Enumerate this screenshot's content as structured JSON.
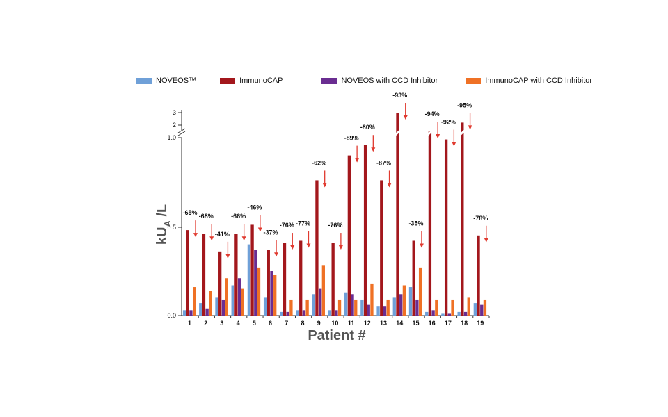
{
  "chart_data": {
    "type": "bar",
    "xlabel": "Patient #",
    "ylabel_main": "kU",
    "ylabel_sub": "A",
    "ylabel_tail": " /L",
    "y_ticks_lower": [
      "0.0",
      "0.5",
      "1.0"
    ],
    "y_ticks_upper": [
      "2",
      "3"
    ],
    "y_scale": "broken axis: 0-1.0 linear, break, 2-3",
    "legend_placement": "top",
    "categories": [
      "1",
      "2",
      "3",
      "4",
      "5",
      "6",
      "7",
      "8",
      "9",
      "10",
      "11",
      "12",
      "13",
      "14",
      "15",
      "16",
      "17",
      "18",
      "19"
    ],
    "series": [
      {
        "name": "NOVEOS™",
        "color": "#6fa0d8",
        "values": [
          0.03,
          0.07,
          0.1,
          0.17,
          0.4,
          0.1,
          0.02,
          0.03,
          0.12,
          0.03,
          0.13,
          0.09,
          0.05,
          0.1,
          0.16,
          0.02,
          0.01,
          0.02,
          0.07
        ]
      },
      {
        "name": "ImmunoCAP",
        "color": "#a3171c",
        "values": [
          0.48,
          0.46,
          0.36,
          0.46,
          0.51,
          0.37,
          0.41,
          0.42,
          0.76,
          0.41,
          0.9,
          0.96,
          0.76,
          3.0,
          0.42,
          1.5,
          0.99,
          2.2,
          0.45
        ]
      },
      {
        "name": "NOVEOS with CCD Inhibitor",
        "color": "#6a2d91",
        "values": [
          0.03,
          0.04,
          0.09,
          0.21,
          0.37,
          0.25,
          0.02,
          0.03,
          0.15,
          0.03,
          0.12,
          0.06,
          0.05,
          0.12,
          0.09,
          0.03,
          0.01,
          0.02,
          0.06
        ]
      },
      {
        "name": "ImmunoCAP with CCD Inhibitor",
        "color": "#ef7125",
        "values": [
          0.16,
          0.14,
          0.21,
          0.15,
          0.27,
          0.23,
          0.09,
          0.09,
          0.28,
          0.09,
          0.09,
          0.18,
          0.09,
          0.17,
          0.27,
          0.09,
          0.09,
          0.1,
          0.09
        ]
      }
    ],
    "annotations": [
      "-65%",
      "-68%",
      "-41%",
      "-66%",
      "-46%",
      "-37%",
      "-76%",
      "-77%",
      "-62%",
      "-76%",
      "-89%",
      "-80%",
      "-87%",
      "-93%",
      "-35%",
      "-94%",
      "-92%",
      "-95%",
      "-78%"
    ],
    "annotation_color": "#e03a2f"
  }
}
